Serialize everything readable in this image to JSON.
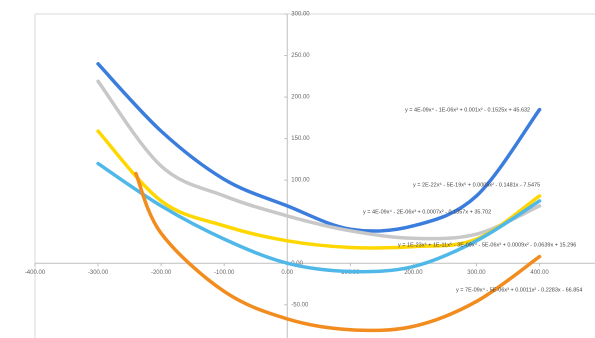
{
  "chart_data": {
    "type": "line",
    "xlim": [
      -400,
      480
    ],
    "ylim": [
      -90,
      300
    ],
    "xticks": [
      {
        "value": -400,
        "label": "-400.00"
      },
      {
        "value": -300,
        "label": "-300.00"
      },
      {
        "value": -200,
        "label": "-200.00"
      },
      {
        "value": -100,
        "label": "-100.00"
      },
      {
        "value": 0,
        "label": "0.00"
      },
      {
        "value": 100,
        "label": "100.00"
      },
      {
        "value": 200,
        "label": "200.00"
      },
      {
        "value": 300,
        "label": "300.00"
      },
      {
        "value": 400,
        "label": "400.00"
      }
    ],
    "yticks": [
      {
        "value": -50,
        "label": "-50.00"
      },
      {
        "value": 0,
        "label": "0.00"
      },
      {
        "value": 100,
        "label": "100.00"
      },
      {
        "value": 150,
        "label": "150.00"
      },
      {
        "value": 200,
        "label": "200.00"
      },
      {
        "value": 250,
        "label": "250.00"
      },
      {
        "value": 300,
        "label": "300.00"
      }
    ],
    "series": [
      {
        "color": "#3b7ddd",
        "x": [
          -300,
          -200,
          -100,
          0,
          100,
          200,
          300,
          400
        ],
        "values": [
          240,
          159,
          101,
          69,
          41,
          45,
          81,
          185
        ],
        "equation": "y = 4E-09x⁴ - 1E-06x³ + 0.001x² - 0.1525x + 45.632"
      },
      {
        "color": "#c8c8c8",
        "x": [
          -300,
          -200,
          -100,
          0,
          100,
          200,
          300,
          400
        ],
        "values": [
          219,
          117,
          81,
          57,
          39,
          30,
          35,
          69
        ],
        "equation": "y = 2E-22x⁶ - 5E-19x⁵ + 0.0005x² - 0.1481x - 7.5475"
      },
      {
        "color": "#ffd700",
        "x": [
          -300,
          -200,
          -100,
          0,
          100,
          200,
          300,
          400
        ],
        "values": [
          159,
          75,
          45,
          27,
          19,
          20,
          29,
          81
        ],
        "equation": "y = 4E-09x⁴ - 2E-06x³ + 0.0007x² - 0.1357x + 35.702"
      },
      {
        "color": "#4fb8e8",
        "x": [
          -300,
          -200,
          -100,
          0,
          100,
          200,
          300,
          400
        ],
        "values": [
          120,
          69,
          29,
          0,
          -10,
          -4,
          27,
          75
        ],
        "equation": "y = 1E-23x⁶ + 1E-11x⁵ - 3E-09x⁴ - 5E-06x³ + 0.0009x² - 0.0639x + 15.296"
      },
      {
        "color": "#f28c1e",
        "x": [
          -240,
          -200,
          -100,
          0,
          100,
          200,
          300,
          400
        ],
        "values": [
          108,
          36,
          -34,
          -67,
          -80,
          -76,
          -46,
          8
        ],
        "equation": "y = 7E-09x⁴ - 5E-06x³ + 0.0011x² - 0.2283x - 66.854"
      }
    ]
  }
}
